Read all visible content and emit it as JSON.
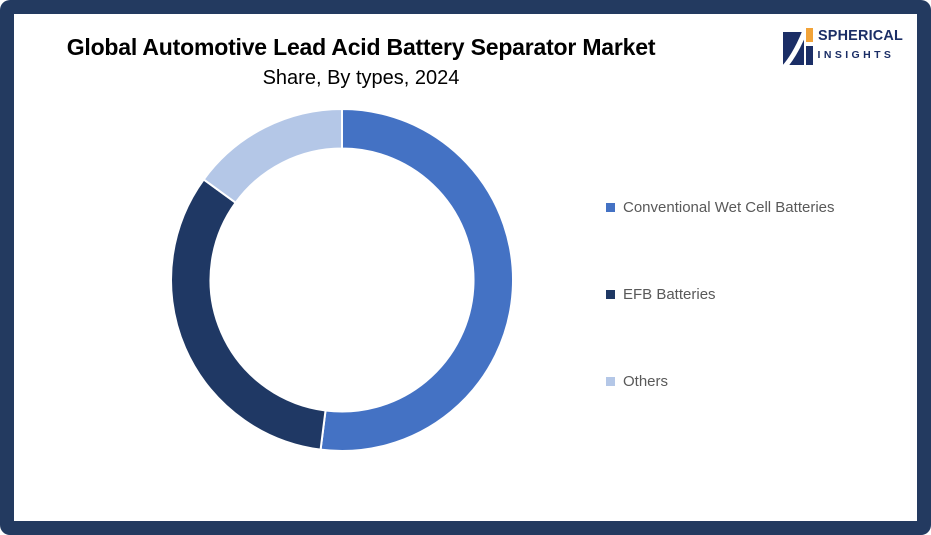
{
  "header": {
    "title": "Global Automotive Lead Acid Battery Separator Market",
    "subtitle": "Share, By types, 2024"
  },
  "logo": {
    "name": "SPHERICAL",
    "tagline": "INSIGHTS",
    "navy": "#1B2E66",
    "orange": "#F2A338"
  },
  "chart_data": {
    "type": "pie",
    "donut": true,
    "title": "Global Automotive Lead Acid Battery Separator Market Share, By types, 2024",
    "categories": [
      "Conventional Wet Cell Batteries",
      "EFB Batteries",
      "Others"
    ],
    "values": [
      52,
      33,
      15
    ],
    "unit": "percent (estimated from arc angles, no data labels shown)",
    "colors": [
      "#4472C4",
      "#1F3864",
      "#B4C7E7"
    ],
    "start_angle_deg": 0,
    "direction": "clockwise",
    "inner_radius_ratio": 0.77,
    "legend_position": "right",
    "data_labels": false,
    "segment_gap_color": "#FFFFFF"
  },
  "legend": {
    "items": [
      {
        "label": "Conventional Wet Cell Batteries",
        "color": "#4472C4"
      },
      {
        "label": "EFB Batteries",
        "color": "#1F3864"
      },
      {
        "label": "Others",
        "color": "#B4C7E7"
      }
    ]
  },
  "frame": {
    "border_color": "#233A60",
    "background": "#FFFFFF"
  }
}
